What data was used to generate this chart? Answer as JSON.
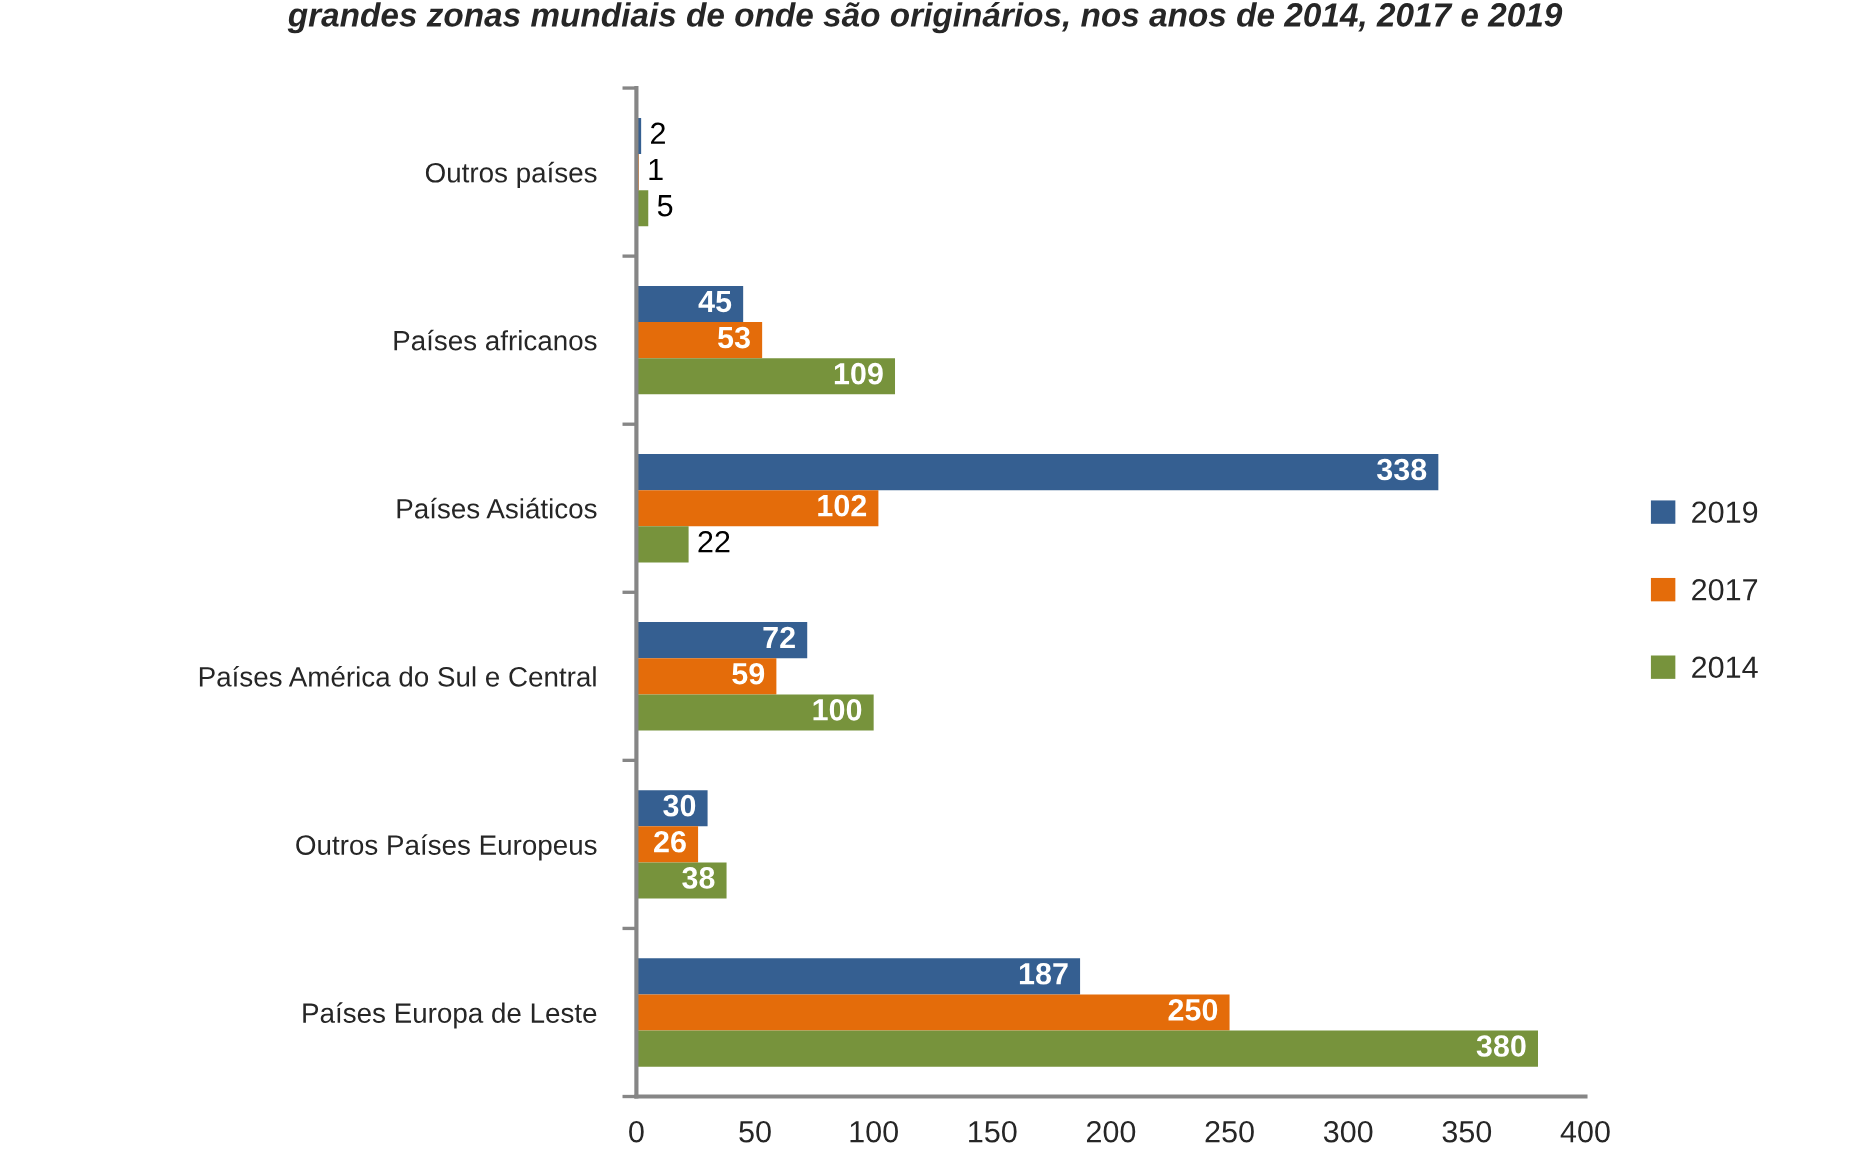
{
  "chart_data": {
    "type": "bar",
    "orientation": "horizontal",
    "title": "grandes zonas mundiais de onde são originários, nos anos de 2014, 2017 e 2019",
    "categories": [
      "Outros países",
      "Países africanos",
      "Países Asiáticos",
      "Países América do Sul e Central",
      "Outros Países Europeus",
      "Países Europa de Leste"
    ],
    "series": [
      {
        "name": "2019",
        "color": "#355f91",
        "values": [
          2,
          45,
          338,
          72,
          30,
          187
        ]
      },
      {
        "name": "2017",
        "color": "#e46c0a",
        "values": [
          1,
          53,
          102,
          59,
          26,
          250
        ]
      },
      {
        "name": "2014",
        "color": "#77933c",
        "values": [
          5,
          109,
          22,
          100,
          38,
          380
        ]
      }
    ],
    "xlim": [
      0,
      400
    ],
    "xticks": [
      0,
      50,
      100,
      150,
      200,
      250,
      300,
      350,
      400
    ],
    "data_labels": true,
    "legend": "right"
  }
}
